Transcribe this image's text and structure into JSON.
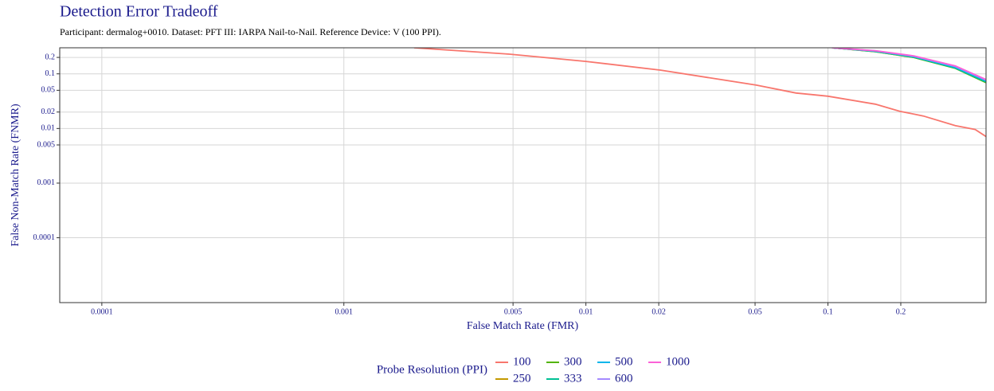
{
  "chart_data": {
    "type": "line",
    "title": "Detection Error Tradeoff",
    "subtitle": "Participant: dermalog+0010. Dataset: PFT III: IARPA Nail-to-Nail. Reference Device: V (100 PPI).",
    "x_label": "False Match Rate (FMR)",
    "y_label": "False Non-Match Rate (FNMR)",
    "legend_title": "Probe Resolution (PPI)",
    "log_x": true,
    "log_y": true,
    "grid": true,
    "legend": "bottom",
    "xlim": [
      6.7e-05,
      0.45
    ],
    "ylim": [
      6.5e-06,
      0.3
    ],
    "xticks": [
      0.0001,
      0.001,
      0.005,
      0.01,
      0.02,
      0.05,
      0.1,
      0.2
    ],
    "yticks": [
      0.2,
      0.1,
      0.05,
      0.02,
      0.01,
      0.005,
      0.001,
      0.0001
    ],
    "series": [
      {
        "name": "100",
        "color": "#F8766D",
        "x": [
          0.00195,
          0.00483,
          0.01,
          0.0204,
          0.0346,
          0.0506,
          0.0738,
          0.1,
          0.157,
          0.198,
          0.248,
          0.336,
          0.406,
          0.45
        ],
        "values": [
          0.3,
          0.229,
          0.169,
          0.117,
          0.081,
          0.0622,
          0.0446,
          0.039,
          0.0279,
          0.0207,
          0.0169,
          0.0113,
          0.0096,
          0.0071
        ]
      },
      {
        "name": "250",
        "color": "#C49A00",
        "x": [
          0.104,
          0.157,
          0.227,
          0.336,
          0.45
        ],
        "values": [
          0.3,
          0.255,
          0.2,
          0.127,
          0.07
        ]
      },
      {
        "name": "300",
        "color": "#53B400",
        "x": [
          0.104,
          0.157,
          0.227,
          0.336,
          0.45
        ],
        "values": [
          0.3,
          0.255,
          0.199,
          0.126,
          0.069
        ]
      },
      {
        "name": "333",
        "color": "#00C094",
        "x": [
          0.104,
          0.157,
          0.227,
          0.336,
          0.45
        ],
        "values": [
          0.3,
          0.257,
          0.202,
          0.128,
          0.071
        ]
      },
      {
        "name": "500",
        "color": "#00B6EB",
        "x": [
          0.104,
          0.157,
          0.227,
          0.336,
          0.45
        ],
        "values": [
          0.3,
          0.26,
          0.205,
          0.132,
          0.074
        ]
      },
      {
        "name": "600",
        "color": "#A58AFF",
        "x": [
          0.104,
          0.157,
          0.227,
          0.336,
          0.45
        ],
        "values": [
          0.3,
          0.263,
          0.21,
          0.137,
          0.077
        ]
      },
      {
        "name": "1000",
        "color": "#FB61D7",
        "x": [
          0.104,
          0.157,
          0.227,
          0.336,
          0.45
        ],
        "values": [
          0.3,
          0.265,
          0.213,
          0.14,
          0.079
        ]
      }
    ]
  }
}
